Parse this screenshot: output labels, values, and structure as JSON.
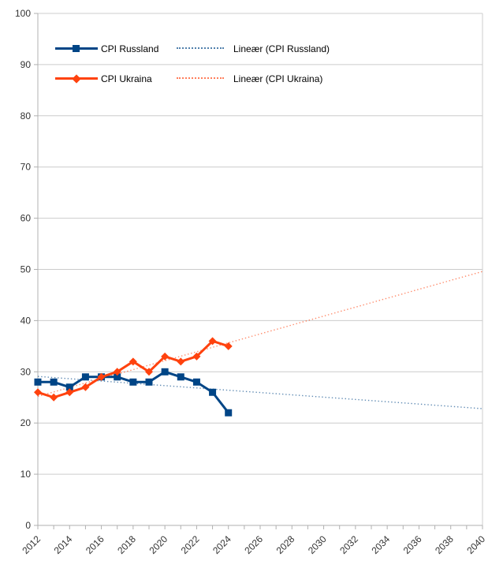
{
  "chart_data": {
    "type": "line",
    "title": "",
    "x": [
      2012,
      2013,
      2014,
      2015,
      2016,
      2017,
      2018,
      2019,
      2020,
      2021,
      2022,
      2023,
      2024
    ],
    "series": [
      {
        "name": "CPI Russland",
        "color": "#004586",
        "marker": "square",
        "values": [
          28,
          28,
          27,
          29,
          29,
          29,
          28,
          28,
          30,
          29,
          28,
          26,
          22
        ]
      },
      {
        "name": "CPI Ukraina",
        "color": "#FF420E",
        "marker": "diamond",
        "values": [
          26,
          25,
          26,
          27,
          29,
          30,
          32,
          30,
          33,
          32,
          33,
          36,
          35
        ]
      }
    ],
    "trendlines": [
      {
        "name": "Lineær (CPI Russland)",
        "color": "#004586",
        "start": {
          "year": 2012,
          "value": 29.1
        },
        "end": {
          "year": 2040,
          "value": 22.8
        }
      },
      {
        "name": "Lineær (CPI Ukraina)",
        "color": "#FF420E",
        "start": {
          "year": 2012,
          "value": 25.2
        },
        "end": {
          "year": 2040,
          "value": 49.6
        }
      }
    ],
    "x_axis": {
      "min": 2012,
      "max": 2040,
      "tick_step": 1,
      "label_step": 2,
      "labels": [
        "2012",
        "2014",
        "2016",
        "2018",
        "2020",
        "2022",
        "2024",
        "2026",
        "2028",
        "2030",
        "2032",
        "2034",
        "2036",
        "2038",
        "2040"
      ]
    },
    "y_axis": {
      "min": 0,
      "max": 100,
      "step": 10,
      "labels": [
        "0",
        "10",
        "20",
        "30",
        "40",
        "50",
        "60",
        "70",
        "80",
        "90",
        "100"
      ]
    },
    "grid": "horizontal-only",
    "legend": {
      "position": "top-left-inside",
      "entries": [
        {
          "label": "CPI Russland",
          "style": "solid-square"
        },
        {
          "label": "Lineær (CPI Russland)",
          "style": "dotted"
        },
        {
          "label": "CPI Ukraina",
          "style": "solid-diamond"
        },
        {
          "label": "Lineær (CPI Ukraina)",
          "style": "dotted"
        }
      ]
    },
    "colors": {
      "grid": "#cccccc",
      "axis": "#b0b0b0",
      "tick_label": "#333333",
      "legend_text": "#000000"
    }
  }
}
